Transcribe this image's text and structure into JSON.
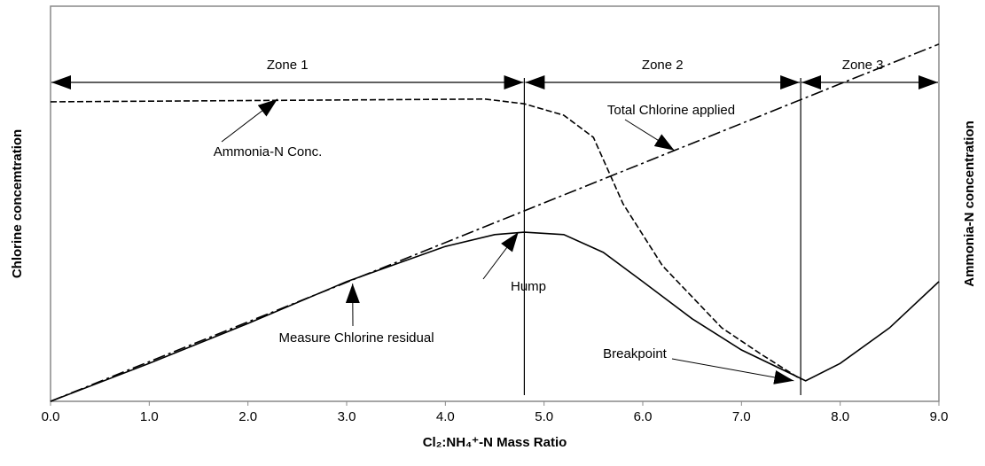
{
  "chart_data": {
    "type": "line",
    "x_label": "Cl₂:NH₄⁺-N Mass Ratio",
    "y_label": "Chlorine concemtration",
    "y2_label": "Ammonia-N concentration",
    "xlim": [
      0,
      9
    ],
    "xticks": [
      {
        "value": 0,
        "label": "0.0"
      },
      {
        "value": 1,
        "label": "1.0"
      },
      {
        "value": 2,
        "label": "2.0"
      },
      {
        "value": 3,
        "label": "3.0"
      },
      {
        "value": 4,
        "label": "4.0"
      },
      {
        "value": 5,
        "label": "5.0"
      },
      {
        "value": 6,
        "label": "6.0"
      },
      {
        "value": 7,
        "label": "7.0"
      },
      {
        "value": 8,
        "label": "8.0"
      },
      {
        "value": 9,
        "label": "9.0"
      }
    ],
    "ylim": [
      0,
      100
    ],
    "series": [
      {
        "style": "dashdot",
        "color": "#000000",
        "x": [
          0,
          9
        ],
        "values": [
          0,
          90.4
        ]
      },
      {
        "style": "dashed",
        "color": "#000000",
        "x": [
          0,
          4.4,
          4.8,
          5.2,
          5.5,
          5.8,
          6.2,
          6.8,
          7.2,
          7.6
        ],
        "values": [
          75.8,
          76.5,
          75.3,
          72.4,
          66.8,
          50,
          34.3,
          18.6,
          11.9,
          5.6
        ]
      },
      {
        "style": "solid",
        "color": "#000000",
        "x": [
          0,
          1,
          2,
          3,
          4,
          4.5,
          4.8,
          5.2,
          5.6,
          6,
          6.5,
          7,
          7.5,
          7.65,
          8,
          8.5,
          9
        ],
        "values": [
          0,
          9.6,
          19.7,
          30.3,
          39.2,
          42.2,
          42.8,
          42.2,
          37.7,
          30.3,
          20.9,
          13,
          7,
          5.2,
          9.6,
          18.6,
          30.3
        ]
      }
    ],
    "zones": [
      {
        "label": "Zone 1",
        "start": 0,
        "end": 4.8
      },
      {
        "label": "Zone 2",
        "start": 4.8,
        "end": 7.6
      },
      {
        "label": "Zone 3",
        "start": 7.6,
        "end": 9
      }
    ],
    "annotations": [
      {
        "text": "Ammonia-N Conc.",
        "x": 2.3,
        "y": 76.5
      },
      {
        "text": "Total Chlorine applied",
        "x": 6.32,
        "y": 63.5
      },
      {
        "text": "Hump",
        "x": 4.74,
        "y": 42.8
      },
      {
        "text": "Measure Chlorine residual",
        "x": 3.06,
        "y": 29.8
      },
      {
        "text": "Breakpoint",
        "x": 7.53,
        "y": 5.2
      }
    ]
  }
}
